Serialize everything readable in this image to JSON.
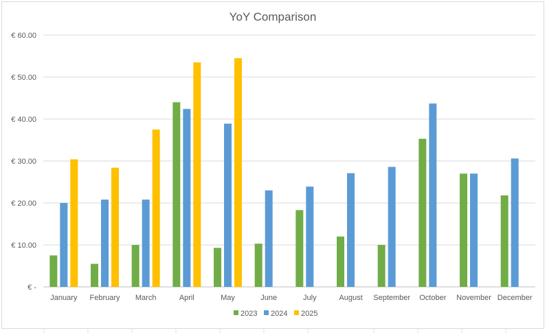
{
  "chart_data": {
    "type": "bar",
    "title": "YoY Comparison",
    "xlabel": "",
    "ylabel": "",
    "ylim": [
      0,
      60
    ],
    "ytick_values": [
      0,
      10,
      20,
      30,
      40,
      50,
      60
    ],
    "ytick_labels": [
      "€ -",
      "€ 10.00",
      "€ 20.00",
      "€ 30.00",
      "€ 40.00",
      "€ 50.00",
      "€ 60.00"
    ],
    "grid": true,
    "legend_position": "bottom",
    "categories": [
      "January",
      "February",
      "March",
      "April",
      "May",
      "June",
      "July",
      "August",
      "September",
      "October",
      "November",
      "December"
    ],
    "series": [
      {
        "name": "2023",
        "color": "#70ad47",
        "values": [
          7.5,
          5.5,
          10.0,
          44.0,
          9.3,
          10.3,
          18.3,
          12.0,
          10.0,
          35.3,
          27.0,
          21.8
        ]
      },
      {
        "name": "2024",
        "color": "#5b9bd5",
        "values": [
          20.0,
          20.8,
          20.8,
          42.4,
          38.9,
          23.0,
          23.9,
          27.1,
          28.6,
          43.7,
          27.0,
          30.6
        ]
      },
      {
        "name": "2025",
        "color": "#ffc000",
        "values": [
          30.4,
          28.4,
          37.5,
          53.5,
          54.5,
          null,
          null,
          null,
          null,
          null,
          null,
          null
        ]
      }
    ]
  }
}
